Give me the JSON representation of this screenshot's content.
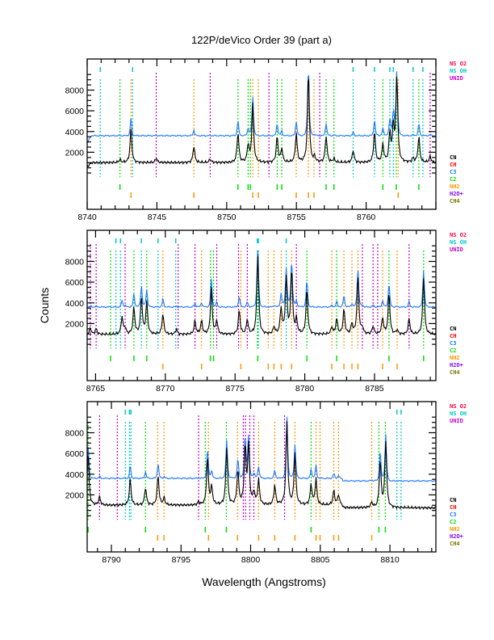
{
  "chart_data": {
    "type": "line",
    "title": "122P/deVico Order 39 (part a)",
    "xlabel": "Wavelength (Angstroms)",
    "ylabel": "Counts",
    "ylim": [
      -3500,
      11000
    ],
    "yticks": [
      2000,
      4000,
      6000,
      8000
    ],
    "grid": false,
    "top_legend": [
      {
        "label": "NS O2",
        "color": "#ff0040"
      },
      {
        "label": "NS OH",
        "color": "#00c8c8"
      },
      {
        "label": "UNID",
        "color": "#c800c8"
      }
    ],
    "bottom_legend": [
      {
        "label": "CN",
        "color": "#000000"
      },
      {
        "label": "CH",
        "color": "#ff0000"
      },
      {
        "label": "C3",
        "color": "#1e78ff"
      },
      {
        "label": "C2",
        "color": "#00e000"
      },
      {
        "label": "NH2",
        "color": "#ff9600"
      },
      {
        "label": "H2O+",
        "color": "#8200ff"
      },
      {
        "label": "CH4",
        "color": "#787800"
      }
    ],
    "series_colors": {
      "black_spectrum": "#000000",
      "blue_spectrum": "#1e78ff"
    },
    "panels": [
      {
        "xlim": [
          8740,
          8765
        ],
        "xticks": [
          8740,
          8745,
          8750,
          8755,
          8760
        ],
        "black_baseline": 1000,
        "blue_baseline": 3600,
        "peaks": [
          [
            8742.35,
            300
          ],
          [
            8743.14,
            3300
          ],
          [
            8744.95,
            450
          ],
          [
            8747.65,
            1600
          ],
          [
            8748.82,
            350
          ],
          [
            8750.81,
            2900
          ],
          [
            8751.54,
            1700
          ],
          [
            8751.87,
            5600
          ],
          [
            8753.62,
            2500
          ],
          [
            8753.95,
            1300
          ],
          [
            8754.99,
            2800
          ],
          [
            8755.86,
            8800
          ],
          [
            8756.3,
            500
          ],
          [
            8757.13,
            2600
          ],
          [
            8757.69,
            350
          ],
          [
            8759.07,
            1200
          ],
          [
            8760.6,
            3000
          ],
          [
            8761.2,
            1700
          ],
          [
            8761.7,
            2800
          ],
          [
            8761.95,
            3500
          ],
          [
            8762.2,
            8200
          ],
          [
            8763.37,
            400
          ],
          [
            8763.78,
            2500
          ],
          [
            8764.59,
            600
          ]
        ],
        "markers": {
          "NS OH": [
            8740.94,
            8743.26,
            8759.07,
            8760.6,
            8761.7,
            8761.95,
            8763.37,
            8764.07
          ],
          "UNID": [
            8744.95,
            8748.82,
            8753.03,
            8756.67,
            8764.59
          ],
          "C2": [
            8742.35,
            8750.81,
            8751.54,
            8751.7,
            8753.62,
            8753.95,
            8757.13,
            8757.69,
            8761.2,
            8762.16,
            8763.78
          ],
          "NH2": [
            8743.14,
            8747.65,
            8751.87,
            8752.27,
            8754.99,
            8755.86,
            8756.26,
            8762.3
          ]
        }
      },
      {
        "xlim": [
          8764.4,
          8789.4
        ],
        "xticks": [
          8765,
          8770,
          8775,
          8780,
          8785
        ],
        "black_baseline": 950,
        "blue_baseline": 3600,
        "peaks": [
          [
            8764.63,
            600
          ],
          [
            8765.04,
            550
          ],
          [
            8766.9,
            1700
          ],
          [
            8767.12,
            600
          ],
          [
            8767.75,
            2600
          ],
          [
            8768.29,
            3600
          ],
          [
            8768.67,
            3100
          ],
          [
            8769.83,
            2000
          ],
          [
            8770.8,
            500
          ],
          [
            8772.13,
            1300
          ],
          [
            8772.6,
            1300
          ],
          [
            8773.3,
            4400
          ],
          [
            8773.69,
            1300
          ],
          [
            8775.3,
            2300
          ],
          [
            8775.88,
            1400
          ],
          [
            8776.63,
            7700
          ],
          [
            8777.8,
            700
          ],
          [
            8778.3,
            2500
          ],
          [
            8778.67,
            5400
          ],
          [
            8779.06,
            6300
          ],
          [
            8779.4,
            1400
          ],
          [
            8780.15,
            4300
          ],
          [
            8781.94,
            700
          ],
          [
            8782.29,
            1500
          ],
          [
            8782.81,
            2400
          ],
          [
            8783.38,
            1000
          ],
          [
            8783.81,
            5600
          ],
          [
            8784.13,
            600
          ],
          [
            8784.9,
            800
          ],
          [
            8785.58,
            1600
          ],
          [
            8786.04,
            4000
          ],
          [
            8786.62,
            400
          ],
          [
            8787.48,
            1500
          ],
          [
            8788.52,
            5500
          ]
        ],
        "markers": {
          "NS OH": [
            8766.46,
            8766.79,
            8768.29,
            8769.48,
            8770.75,
            8776.6,
            8776.67,
            8778.67
          ],
          "UNID": [
            8764.63,
            8765.04,
            8767.12,
            8770.92,
            8772.13,
            8773.69,
            8775.25,
            8775.88,
            8779.4,
            8784.13,
            8784.9,
            8785.23,
            8787.48
          ],
          "C2": [
            8766.08,
            8767.75,
            8768.67,
            8773.23,
            8773.46,
            8776.63,
            8780.15,
            8782.29,
            8786.04,
            8788.52
          ],
          "NH2": [
            8769.83,
            8772.6,
            8775.42,
            8777.38,
            8777.79,
            8778.31,
            8779.06,
            8781.94,
            8782.81,
            8783.38,
            8783.81,
            8785.58,
            8786.62
          ]
        }
      },
      {
        "xlim": [
          8788.26,
          8813.3
        ],
        "xticks": [
          8790,
          8795,
          8800,
          8805,
          8810
        ],
        "black_baseline": 1000,
        "blue_baseline": 3600,
        "peaks": [
          [
            8788.33,
            5100
          ],
          [
            8789.15,
            800
          ],
          [
            8791.35,
            2500
          ],
          [
            8792.45,
            1700
          ],
          [
            8793.35,
            2900
          ],
          [
            8793.78,
            700
          ],
          [
            8796.26,
            300
          ],
          [
            8796.9,
            4500
          ],
          [
            8797.2,
            1700
          ],
          [
            8798.28,
            5600
          ],
          [
            8799.08,
            3300
          ],
          [
            8799.6,
            5600
          ],
          [
            8799.85,
            5700
          ],
          [
            8800.23,
            1200
          ],
          [
            8800.57,
            2400
          ],
          [
            8801.73,
            1900
          ],
          [
            8802.6,
            8000
          ],
          [
            8803.18,
            5000
          ],
          [
            8804.34,
            2000
          ],
          [
            8804.69,
            2500
          ],
          [
            8805.97,
            1400
          ],
          [
            8806.31,
            1000
          ],
          [
            8808.69,
            500
          ],
          [
            8809.3,
            4500
          ],
          [
            8809.7,
            6400
          ]
        ],
        "markers": {
          "NS OH": [
            8791.0,
            8791.3,
            8791.4,
            8810.5,
            8810.8
          ],
          "UNID": [
            8789.15,
            8790.42,
            8796.26,
            8799.47,
            8799.63,
            8799.94,
            8800.23,
            8802.43
          ],
          "C2": [
            8788.33,
            8792.45,
            8796.74,
            8798.25,
            8804.34,
            8809.21,
            8809.67
          ],
          "NH2": [
            8793.32,
            8793.78,
            8796.97,
            8799.06,
            8800.57,
            8801.73,
            8803.18,
            8804.69,
            8804.98,
            8805.97,
            8806.31,
            8808.69
          ]
        }
      }
    ]
  }
}
